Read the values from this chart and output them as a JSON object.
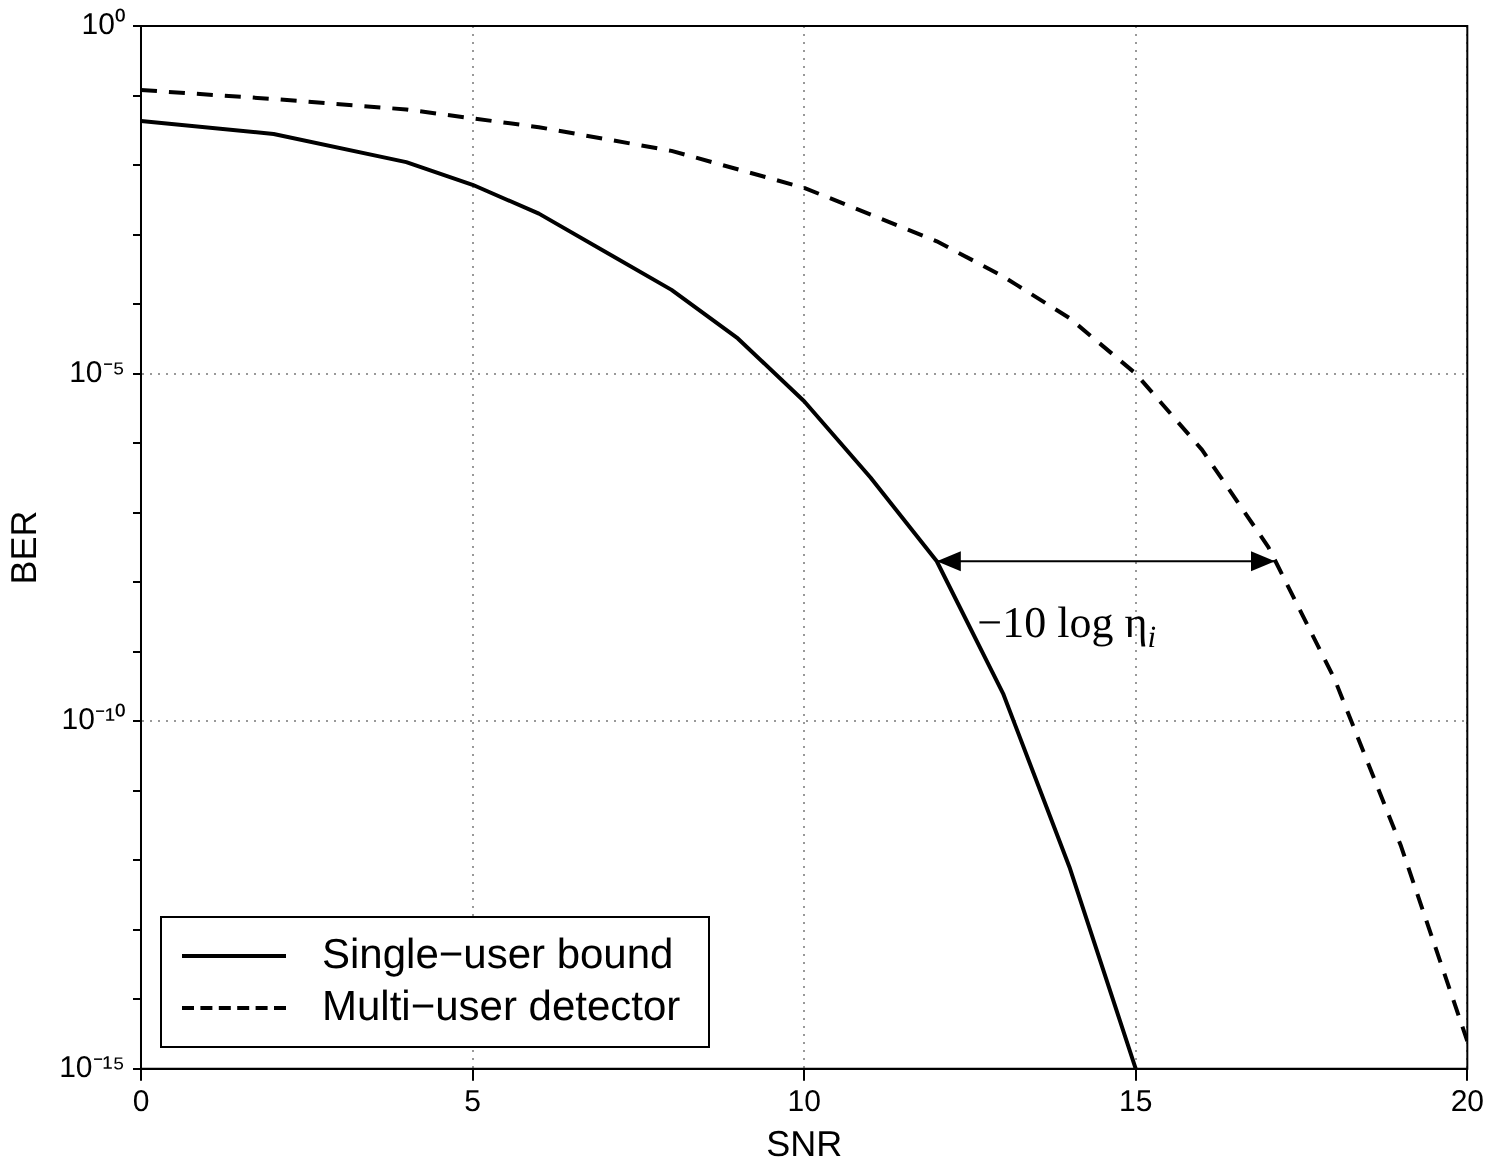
{
  "chart_data": {
    "type": "line",
    "xlabel": "SNR",
    "ylabel": "BER",
    "log": true,
    "grid": true,
    "legend": "bottom left",
    "marker": "none",
    "xlim": [
      0,
      20
    ],
    "xticks": [
      0,
      5,
      10,
      15,
      20
    ],
    "ylim": [
      1e-15,
      1
    ],
    "yticks": [
      {
        "value": 1,
        "label": "10⁰"
      },
      {
        "value": 0.1,
        "label": null
      },
      {
        "value": 0.01,
        "label": null
      },
      {
        "value": 0.001,
        "label": null
      },
      {
        "value": 0.0001,
        "label": null
      },
      {
        "value": 1e-05,
        "label": "10⁻⁵"
      },
      {
        "value": 1e-06,
        "label": null
      },
      {
        "value": 1e-07,
        "label": null
      },
      {
        "value": 1e-08,
        "label": null
      },
      {
        "value": 1e-09,
        "label": null
      },
      {
        "value": 1e-10,
        "label": "10⁻¹⁰"
      },
      {
        "value": 1e-11,
        "label": null
      },
      {
        "value": 1e-12,
        "label": null
      },
      {
        "value": 1e-13,
        "label": null
      },
      {
        "value": 1e-14,
        "label": null
      },
      {
        "value": 1e-15,
        "label": "10⁻¹⁵"
      }
    ],
    "series": [
      {
        "name": "Single−user bound",
        "color": "#000000",
        "line_style": "solid",
        "x": [
          0,
          2,
          4,
          5,
          6,
          8,
          9,
          10,
          11,
          12,
          13,
          14,
          15
        ],
        "values": [
          0.043,
          0.028,
          0.011,
          0.0052,
          0.002,
          0.00016,
          3.2e-05,
          4e-06,
          3.2e-07,
          2e-08,
          2.5e-10,
          8e-13,
          1e-15
        ]
      },
      {
        "name": "Multi−user detector",
        "color": "#000000",
        "line_style": "dashed",
        "x": [
          0,
          2,
          4,
          6,
          8,
          10,
          12,
          13,
          14,
          15,
          16,
          17,
          18,
          19,
          20
        ],
        "values": [
          0.12,
          0.089,
          0.063,
          0.035,
          0.016,
          0.0047,
          0.0008,
          0.00025,
          6.3e-05,
          1e-05,
          8e-07,
          3.2e-08,
          4e-10,
          1.6e-12,
          2.5e-15
        ]
      }
    ],
    "annotations": [
      {
        "text": "−10 log η$_{i}$",
        "x": 17.1,
        "y": 2e-08
      }
    ]
  }
}
